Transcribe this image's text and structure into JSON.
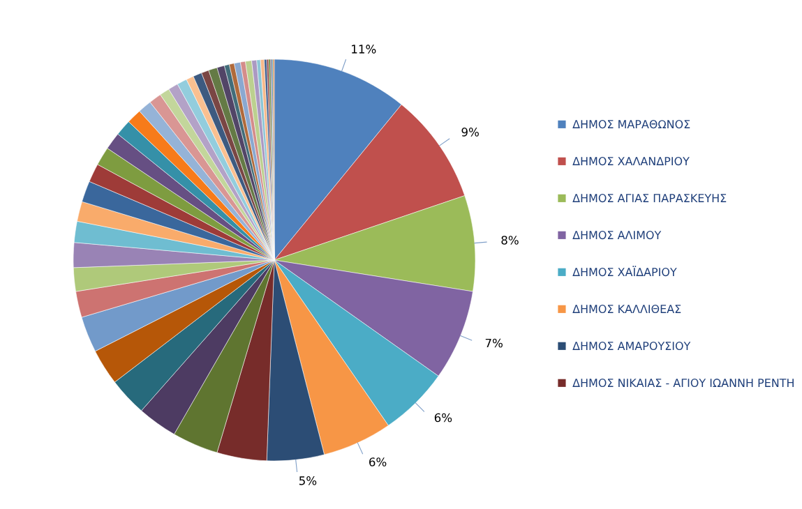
{
  "chart_data": {
    "type": "pie",
    "categories": [
      "ΔΗΜΟΣ ΜΑΡΑΘΩΝΟΣ",
      "ΔΗΜΟΣ ΧΑΛΑΝΔΡΙΟΥ",
      "ΔΗΜΟΣ ΑΓΙΑΣ ΠΑΡΑΣΚΕΥΗΣ",
      "ΔΗΜΟΣ ΑΛΙΜΟΥ",
      "ΔΗΜΟΣ ΧΑΪΔΑΡΙΟΥ",
      "ΔΗΜΟΣ ΚΑΛΛΙΘΕΑΣ",
      "ΔΗΜΟΣ ΑΜΑΡΟΥΣΙΟΥ",
      "ΔΗΜΟΣ ΝΙΚΑΙΑΣ - ΑΓΙΟΥ ΙΩΑΝΝΗ ΡΕΝΤΗ",
      null,
      null,
      null,
      null,
      null,
      null,
      null,
      null,
      null,
      null,
      null,
      null,
      null,
      null,
      null,
      null,
      null,
      null,
      null,
      null,
      null,
      null,
      null,
      null,
      null,
      null,
      null,
      null,
      null,
      null,
      null,
      null,
      null,
      null,
      null,
      null,
      null,
      null,
      null,
      null
    ],
    "values": [
      10.9,
      8.9,
      7.7,
      7.3,
      5.6,
      5.6,
      4.6,
      4.0,
      3.7,
      3.2,
      3.1,
      2.9,
      2.9,
      2.1,
      1.9,
      2.0,
      1.7,
      1.6,
      1.7,
      1.5,
      1.5,
      1.4,
      1.3,
      1.2,
      1.1,
      1.0,
      0.8,
      0.8,
      0.8,
      0.6,
      0.7,
      0.6,
      0.7,
      0.6,
      0.4,
      0.4,
      0.5,
      0.4,
      0.5,
      0.4,
      0.3,
      0.3,
      0.2,
      0.15,
      0.15,
      0.1,
      0.1,
      0.1
    ],
    "colors": [
      "#4f81bd",
      "#c0504d",
      "#9bbb59",
      "#8064a2",
      "#4bacc6",
      "#f79646",
      "#2c4d75",
      "#772c2a",
      "#5f7530",
      "#4d3b62",
      "#276a7c",
      "#b65708",
      "#729aca",
      "#cd7371",
      "#afc97a",
      "#9983b5",
      "#6fbdd1",
      "#f9ab6b",
      "#3a679c",
      "#9e3b38",
      "#7e9c40",
      "#664f83",
      "#3590a8",
      "#f77b1a",
      "#95b3d7",
      "#d99694",
      "#c3d69b",
      "#b3a2c7",
      "#93cddd",
      "#fac090",
      "#3d5a80",
      "#7a4644",
      "#647a45",
      "#524567",
      "#426d7a",
      "#b06a3b",
      "#8aa8d0",
      "#d48c8a",
      "#bcd08f",
      "#ab99c2",
      "#8cc6d6",
      "#f7b98a",
      "#3f5f8f",
      "#8e3d3b",
      "#6e8a3a",
      "#5e4a7a",
      "#3a8aa0",
      "#d9732a"
    ],
    "value_labels": [
      "11%",
      "9%",
      "8%",
      "7%",
      "6%",
      "6%",
      "5%",
      null,
      null,
      null,
      null,
      null,
      null,
      null,
      null,
      null,
      null,
      null,
      null,
      null,
      null,
      null,
      null,
      null,
      null,
      null,
      null,
      null,
      null,
      null,
      null,
      null,
      null,
      null,
      null,
      null,
      null,
      null,
      null,
      null,
      null,
      null,
      null,
      null,
      null,
      null,
      null,
      null
    ],
    "legend": "right"
  }
}
